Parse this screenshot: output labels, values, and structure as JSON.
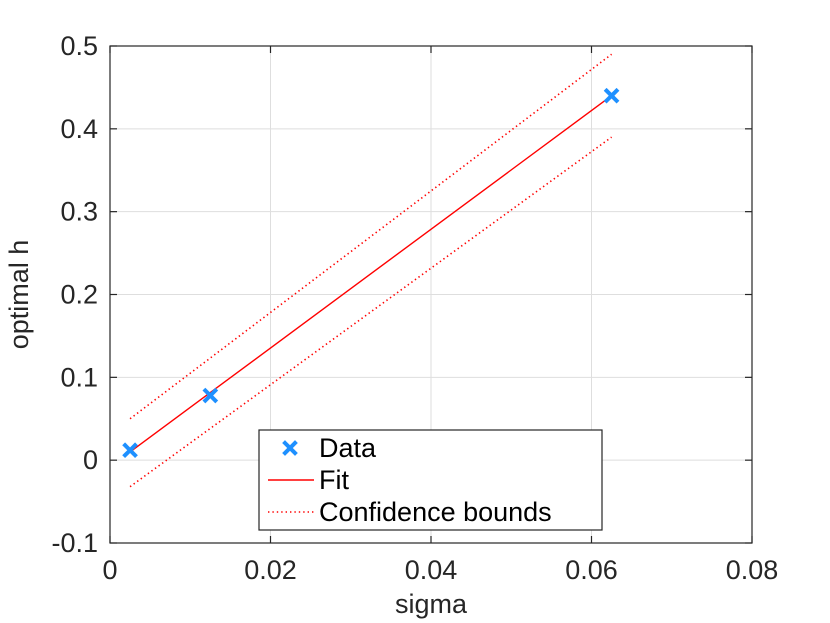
{
  "chart_data": {
    "type": "scatter",
    "xlabel": "sigma",
    "ylabel": "optimal h",
    "xlim": [
      0,
      0.08
    ],
    "ylim": [
      -0.1,
      0.5
    ],
    "x_ticks": [
      0,
      0.02,
      0.04,
      0.06,
      0.08
    ],
    "x_tick_labels": [
      "0",
      "0.02",
      "0.04",
      "0.06",
      "0.08"
    ],
    "y_ticks": [
      -0.1,
      0,
      0.1,
      0.2,
      0.3,
      0.4,
      0.5
    ],
    "y_tick_labels": [
      "-0.1",
      "0",
      "0.1",
      "0.2",
      "0.3",
      "0.4",
      "0.5"
    ],
    "grid": true,
    "legend_position": "bottom-center",
    "colors": {
      "data": "#1e90ff",
      "fit": "#ff0000",
      "bounds": "#ff0000",
      "grid": "#dedede",
      "axes": "#262626"
    },
    "series": [
      {
        "name": "Data",
        "style": "markers",
        "marker": "x",
        "x": [
          0.0025,
          0.0125,
          0.0625
        ],
        "y": [
          0.012,
          0.078,
          0.44
        ]
      },
      {
        "name": "Fit",
        "style": "solid-line",
        "x": [
          0.0025,
          0.0625
        ],
        "y": [
          0.01,
          0.44
        ]
      },
      {
        "name": "Confidence bounds",
        "style": "dotted-line",
        "x": [
          0.0025,
          0.0625
        ],
        "y": [
          0.05,
          0.49
        ]
      },
      {
        "name": "",
        "style": "dotted-line",
        "x": [
          0.0025,
          0.0625
        ],
        "y": [
          -0.032,
          0.39
        ]
      }
    ],
    "legend": [
      "Data",
      "Fit",
      "Confidence bounds"
    ]
  }
}
